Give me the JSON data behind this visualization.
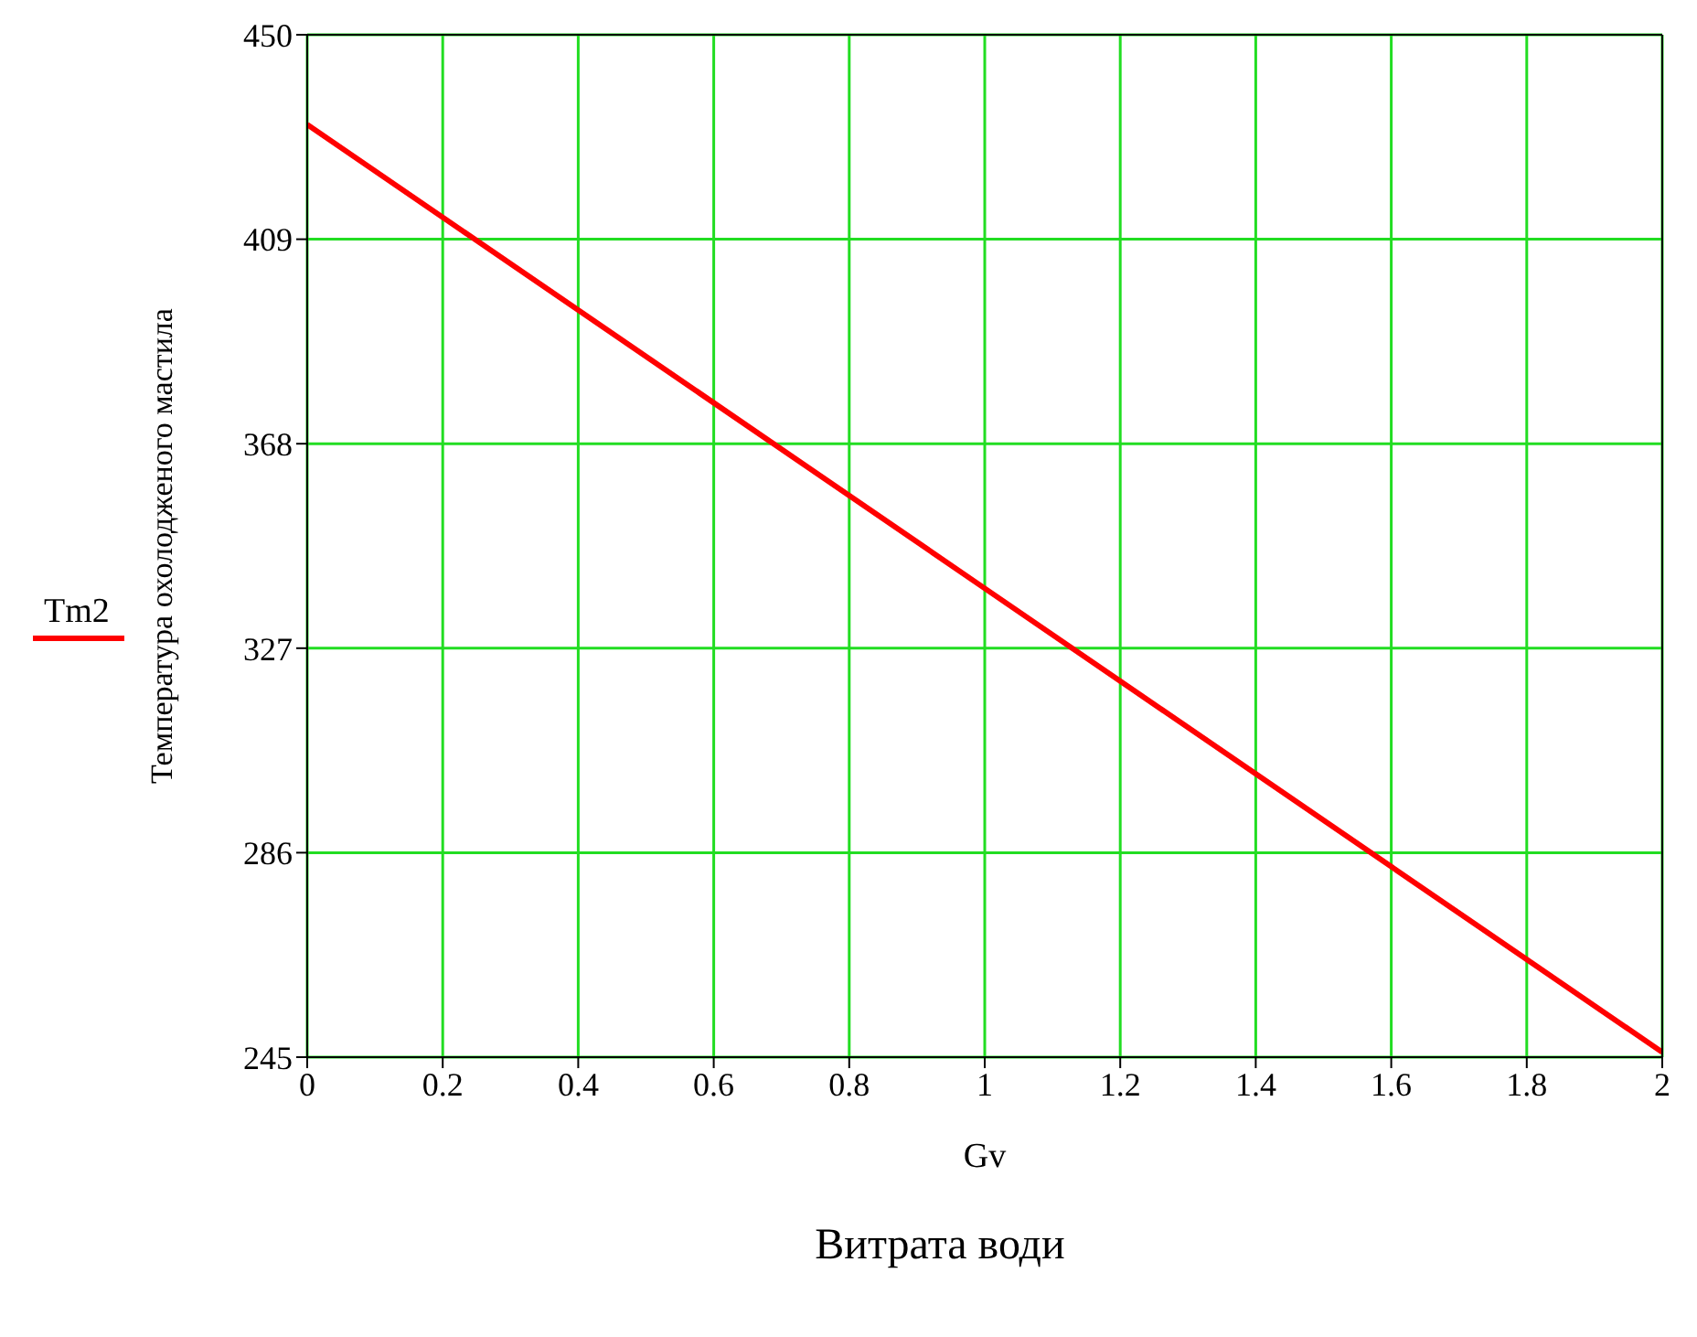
{
  "chart_data": {
    "type": "line",
    "xlabel": "Gv",
    "ylabel": "Температура охолодженого мастила",
    "annotations": [
      "Витрата води"
    ],
    "x": [
      0,
      1,
      2
    ],
    "series": [
      {
        "name": "Tm2",
        "color": "#ff0000",
        "values": [
          432,
          339,
          246
        ]
      }
    ],
    "xlim": [
      0,
      2
    ],
    "xticks": [
      0,
      0.2,
      0.4,
      0.6,
      0.8,
      1,
      1.2,
      1.4,
      1.6,
      1.8,
      2
    ],
    "ylim": [
      245,
      450
    ],
    "yticks": [
      245,
      286,
      327,
      368,
      409,
      450
    ],
    "grid": true,
    "legend": "left",
    "marker": "none",
    "line_style": "solid"
  }
}
